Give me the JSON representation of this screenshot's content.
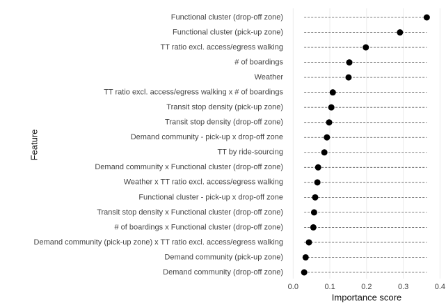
{
  "chart_data": {
    "type": "dot",
    "xlabel": "Importance score",
    "ylabel": "Feature",
    "categories": [
      "Functional cluster (drop-off zone)",
      "Functional cluster (pick-up zone)",
      "TT ratio excl. access/egress walking",
      "# of boardings",
      "Weather",
      "TT ratio excl. access/egress walking x # of boardings",
      "Transit stop density (pick-up zone)",
      "Transit stop density (drop-off zone)",
      "Demand community - pick-up x drop-off zone",
      "TT by ride-sourcing",
      "Demand community x Functional cluster (drop-off zone)",
      "Weather x TT ratio excl. access/egress walking",
      "Functional cluster - pick-up x drop-off zone",
      "Transit stop density x Functional cluster (drop-off zone)",
      "# of boardings x Functional cluster (drop-off zone)",
      "Demand community (pick-up zone) x TT ratio excl. access/egress walking",
      "Demand community (pick-up zone)",
      "Demand community (drop-off zone)"
    ],
    "values": [
      0.364,
      0.291,
      0.198,
      0.153,
      0.151,
      0.108,
      0.104,
      0.098,
      0.092,
      0.085,
      0.068,
      0.066,
      0.06,
      0.057,
      0.055,
      0.043,
      0.034,
      0.03
    ],
    "color": "#000000",
    "xlim": [
      -0.012,
      0.405
    ],
    "xticks": [
      {
        "value": 0,
        "label": "0.0"
      },
      0.1,
      0.2,
      0.3,
      0.4
    ],
    "grid": true
  }
}
